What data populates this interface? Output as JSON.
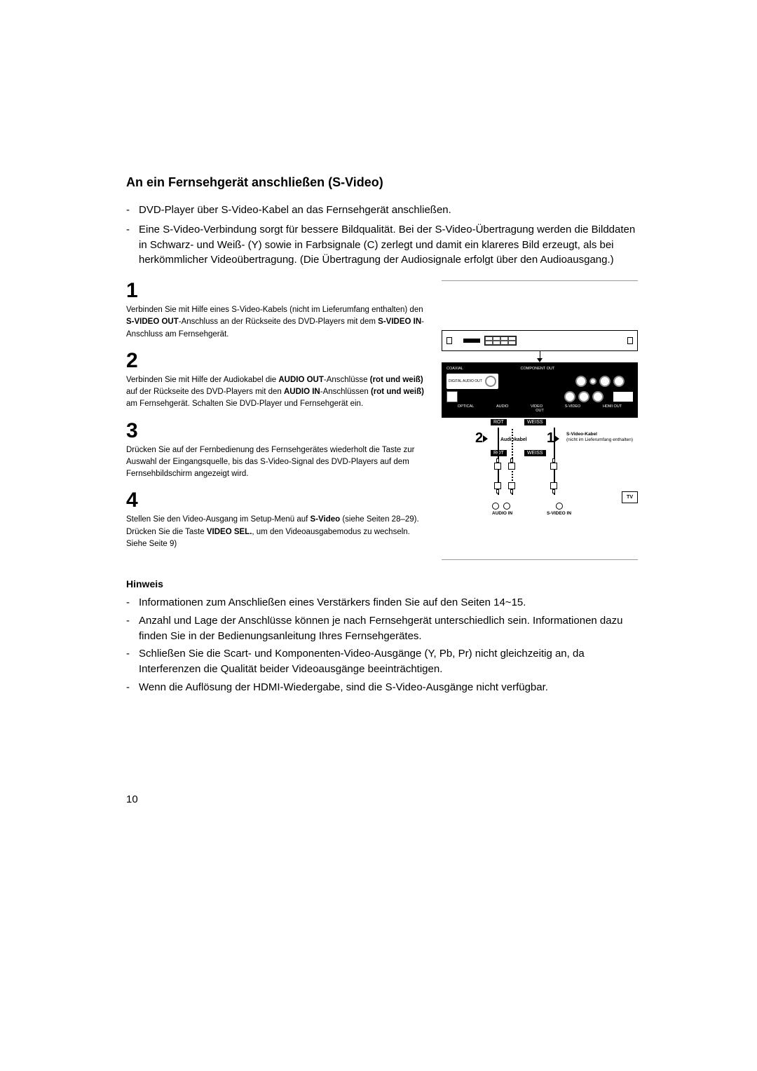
{
  "title": "An ein Fernsehgerät anschließen (S-Video)",
  "intro": [
    "DVD-Player über S-Video-Kabel an das Fernsehgerät anschließen.",
    "Eine S-Video-Verbindung sorgt für bessere Bildqualität. Bei der S-Video-Übertragung werden die Bilddaten in Schwarz- und Weiß- (Y) sowie in Farbsignale (C) zerlegt und damit ein klareres Bild erzeugt, als bei herkömmlicher Videoübertragung. (Die Übertragung der Audiosignale erfolgt über den Audioausgang.)"
  ],
  "steps": [
    {
      "num": "1",
      "html": "Verbinden Sie mit Hilfe eines S-Video-Kabels (nicht im Lieferumfang enthalten) den <b>S-VIDEO OUT</b>-Anschluss an der Rückseite des DVD-Players mit dem <b>S-VIDEO IN</b>-Anschluss am Fernsehgerät."
    },
    {
      "num": "2",
      "html": "Verbinden Sie mit Hilfe der Audiokabel die <b>AUDIO OUT</b>-Anschlüsse <b>(rot und weiß)</b> auf der Rückseite des DVD-Players mit den <b>AUDIO IN</b>-Anschlüssen <b>(rot und weiß)</b> am Fernsehgerät. Schalten Sie DVD-Player und Fernsehgerät ein."
    },
    {
      "num": "3",
      "html": "Drücken Sie auf der Fernbedienung des Fernsehgerätes wiederholt die Taste zur Auswahl der Eingangsquelle, bis das S-Video-Signal des DVD-Players auf dem Fernsehbildschirm angezeigt wird."
    },
    {
      "num": "4",
      "html": "Stellen Sie den Video-Ausgang im Setup-Menü auf <b>S-Video</b> (siehe Seiten 28–29).<br>Drücken Sie die Taste <b>VIDEO SEL.</b>, um den Videoausgabemodus zu wechseln. Siehe Seite 9)"
    }
  ],
  "note_heading": "Hinweis",
  "notes": [
    "Informationen zum Anschließen eines Verstärkers finden Sie auf den Seiten 14~15.",
    "Anzahl und Lage der Anschlüsse können je nach Fernsehgerät unterschiedlich sein. Informationen dazu finden Sie in der Bedienungsanleitung Ihres Fernsehgerätes.",
    "Schließen Sie die Scart- und Komponenten-Video-Ausgänge (Y, Pb, Pr) nicht gleichzeitig an, da Interferenzen die Qualität beider Videoausgänge beeinträchtigen.",
    "Wenn die Auflösung der HDMI-Wiedergabe, sind die S-Video-Ausgänge nicht verfügbar."
  ],
  "page_number": "10",
  "diagram": {
    "panel_labels": {
      "coaxial": "COAXIAL",
      "component": "COMPONENT OUT",
      "digital_audio": "DIGITAL AUDIO OUT",
      "optical": "OPTICAL",
      "audio": "AUDIO",
      "video": "VIDEO",
      "svideo": "S-VIDEO",
      "hdmi": "HDMI OUT",
      "out": "OUT"
    },
    "cable_labels": {
      "rot": "ROT",
      "weiss": "WEISS",
      "audiokabel": "Audiokabel",
      "svideo_kabel": "S-Video-Kabel",
      "svideo_note": "(nicht im Lieferumfang enthalten)",
      "audio_in": "AUDIO IN",
      "svideo_in": "S-VIDEO IN",
      "tv": "TV"
    },
    "callouts": {
      "one": "1",
      "two": "2"
    },
    "colors": {
      "black": "#000000",
      "white": "#ffffff",
      "grey": "#888888"
    }
  }
}
